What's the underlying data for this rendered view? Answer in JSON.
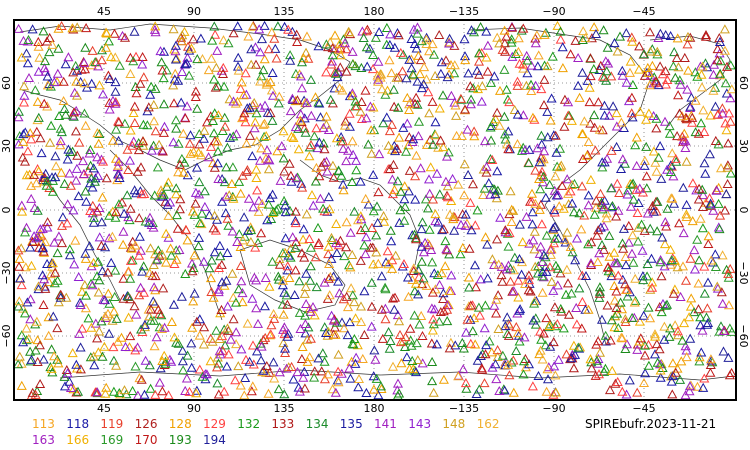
{
  "map": {
    "projection": "cylindrical-equidistant",
    "center_longitude": 180,
    "marker_shape": "triangle-outline",
    "grid_style": "dotted",
    "top_axis_labels": [
      "45",
      "90",
      "135",
      "180",
      "−135",
      "−90",
      "−45"
    ],
    "bottom_axis_labels": [
      "45",
      "90",
      "135",
      "180",
      "−135",
      "−90",
      "−45"
    ],
    "left_axis_labels": [
      "60",
      "30",
      "0",
      "−30",
      "−60"
    ],
    "right_axis_labels": [
      "60",
      "30",
      "0",
      "−30",
      "−60"
    ]
  },
  "legend": {
    "title": "SPIREbufr.2023-11-21",
    "items": [
      {
        "label": "113",
        "color": "#f5a623"
      },
      {
        "label": "118",
        "color": "#1a1aa6"
      },
      {
        "label": "119",
        "color": "#e8402c"
      },
      {
        "label": "126",
        "color": "#b0201e"
      },
      {
        "label": "128",
        "color": "#f0a000"
      },
      {
        "label": "129",
        "color": "#ff4040"
      },
      {
        "label": "132",
        "color": "#1a9a1a"
      },
      {
        "label": "133",
        "color": "#b01818"
      },
      {
        "label": "134",
        "color": "#1a8a2a"
      },
      {
        "label": "135",
        "color": "#1a1aa0"
      },
      {
        "label": "141",
        "color": "#a020c0"
      },
      {
        "label": "143",
        "color": "#9020d0"
      },
      {
        "label": "148",
        "color": "#d0a020"
      },
      {
        "label": "162",
        "color": "#f0b030"
      },
      {
        "label": "163",
        "color": "#a020c0"
      },
      {
        "label": "166",
        "color": "#f0b000"
      },
      {
        "label": "169",
        "color": "#2a9a2a"
      },
      {
        "label": "170",
        "color": "#c01818"
      },
      {
        "label": "193",
        "color": "#1a8a1a"
      },
      {
        "label": "194",
        "color": "#20209a"
      }
    ]
  }
}
